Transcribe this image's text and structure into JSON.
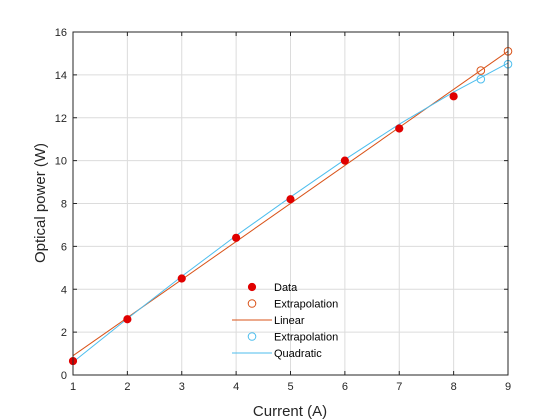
{
  "chart_data": {
    "type": "scatter",
    "xlabel": "Current (A)",
    "ylabel": "Optical power (W)",
    "xlim": [
      1,
      9
    ],
    "ylim": [
      0,
      16
    ],
    "xticks": [
      1,
      2,
      3,
      4,
      5,
      6,
      7,
      8,
      9
    ],
    "yticks": [
      0,
      2,
      4,
      6,
      8,
      10,
      12,
      14,
      16
    ],
    "grid": true,
    "legend_position": "bottom-center",
    "series": [
      {
        "name": "Data",
        "kind": "points",
        "marker": "filled-circle",
        "color": "#e00000",
        "x": [
          1,
          2,
          3,
          4,
          5,
          6,
          7,
          8
        ],
        "y": [
          0.65,
          2.6,
          4.5,
          6.4,
          8.2,
          10.0,
          11.5,
          13.0
        ]
      },
      {
        "name": "Extrapolation",
        "kind": "points",
        "marker": "open-circle",
        "color": "#d95319",
        "x": [
          8.5,
          9
        ],
        "y": [
          14.2,
          15.1
        ]
      },
      {
        "name": "Linear",
        "kind": "line",
        "color": "#d95319",
        "x": [
          1,
          9
        ],
        "y": [
          0.9,
          15.1
        ]
      },
      {
        "name": "Extrapolation",
        "kind": "points",
        "marker": "open-circle",
        "color": "#4dbeee",
        "x": [
          8.5,
          9
        ],
        "y": [
          13.8,
          14.5
        ]
      },
      {
        "name": "Quadratic",
        "kind": "line",
        "color": "#4dbeee",
        "x": [
          1,
          2,
          3,
          4,
          5,
          6,
          7,
          8,
          9
        ],
        "y": [
          0.6,
          2.63,
          4.6,
          6.5,
          8.3,
          10.05,
          11.7,
          13.2,
          14.55
        ]
      }
    ]
  }
}
